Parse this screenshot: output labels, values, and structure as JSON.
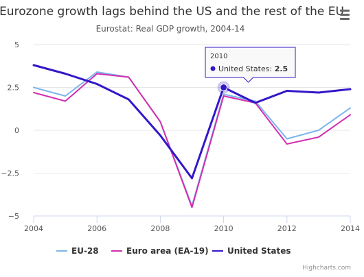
{
  "chart_data": {
    "type": "line",
    "title": "Eurozone growth lags behind the US and the rest of the EU",
    "subtitle": "Eurostat: Real GDP growth, 2004-14",
    "xlabel": "",
    "ylabel": "",
    "x": [
      2004,
      2005,
      2006,
      2007,
      2008,
      2009,
      2010,
      2011,
      2012,
      2013,
      2014
    ],
    "x_ticks": [
      "2004",
      "2006",
      "2008",
      "2010",
      "2012",
      "2014"
    ],
    "y_ticks": [
      "5",
      "2.5",
      "0",
      "−2.5",
      "−5"
    ],
    "ylim": [
      -5,
      5
    ],
    "xlim": [
      2004,
      2014
    ],
    "grid": "horizontal",
    "legend_position": "bottom",
    "series": [
      {
        "name": "EU-28",
        "color": "#7cb5ec",
        "values": [
          2.5,
          2.0,
          3.4,
          3.1,
          0.5,
          -4.4,
          2.1,
          1.7,
          -0.5,
          0.0,
          1.3
        ]
      },
      {
        "name": "Euro area (EA-19)",
        "color": "#d12fb0",
        "values": [
          2.2,
          1.7,
          3.3,
          3.1,
          0.5,
          -4.5,
          2.0,
          1.6,
          -0.8,
          -0.4,
          0.9
        ]
      },
      {
        "name": "United States",
        "color": "#3218c8",
        "values": [
          3.8,
          3.3,
          2.7,
          1.8,
          -0.3,
          -2.8,
          2.5,
          1.6,
          2.3,
          2.2,
          2.4
        ]
      }
    ],
    "tooltip": {
      "x_label": "2010",
      "series_name": "United States",
      "separator": ": ",
      "value": "2.5",
      "series_index": 2,
      "point_index": 6
    },
    "credits": "Highcharts.com"
  }
}
